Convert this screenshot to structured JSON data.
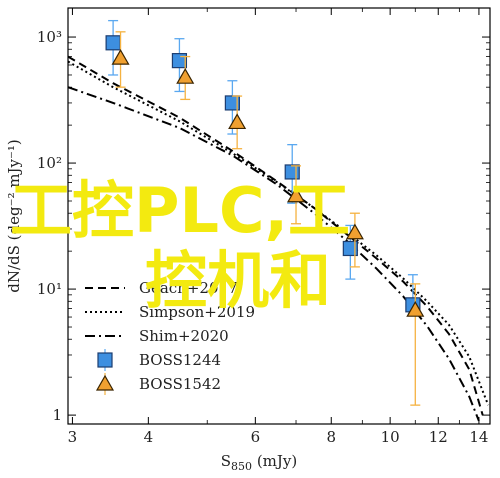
{
  "chart_data": {
    "type": "scatter",
    "xlabel": "S850 (mJy)",
    "xlabel_main": "S",
    "xlabel_sub": "850",
    "xlabel_unit": " (mJy)",
    "ylabel": "dN/dS (deg⁻² mJy⁻¹)",
    "xscale": "log",
    "yscale": "log",
    "xlim": [
      2.95,
      14.6
    ],
    "ylim": [
      0.85,
      1700
    ],
    "x_ticks": [
      3,
      4,
      6,
      8,
      10,
      12,
      14
    ],
    "x_tick_labels": [
      "3",
      "4",
      "6",
      "8",
      "10",
      "12",
      "14"
    ],
    "y_ticks": [
      1,
      10,
      100,
      1000
    ],
    "y_tick_labels": [
      "1",
      "10¹",
      "10²",
      "10³"
    ],
    "lines": [
      {
        "name": "Geach+2017",
        "style": "dashed",
        "x": [
          2.95,
          3.5,
          4.5,
          5.5,
          6.5,
          7.5,
          8.5,
          9.5,
          10.5,
          11.5,
          12.5,
          13.5,
          14.2
        ],
        "y": [
          700,
          430,
          230,
          125,
          72,
          44,
          27,
          17.5,
          11.5,
          7.3,
          4.4,
          2.3,
          1.0
        ]
      },
      {
        "name": "Simpson+2019",
        "style": "dotted",
        "x": [
          2.95,
          3.5,
          4.5,
          5.5,
          6.5,
          7.5,
          8.5,
          9.5,
          10.5,
          11.5,
          12.5,
          13.5,
          14.5
        ],
        "y": [
          640,
          400,
          215,
          120,
          71,
          44,
          28,
          18.5,
          12.2,
          8.0,
          5.2,
          2.9,
          1.2
        ]
      },
      {
        "name": "Shim+2020",
        "style": "dashdot",
        "x": [
          2.95,
          3.5,
          4.5,
          5.5,
          6.5,
          7.5,
          8.5,
          9.5,
          10.5,
          11.5,
          12.5,
          13.5,
          14.0
        ],
        "y": [
          400,
          300,
          190,
          115,
          68,
          40,
          24,
          14.5,
          8.8,
          5.1,
          2.8,
          1.4,
          0.9
        ]
      }
    ],
    "series": [
      {
        "name": "BOSS1244",
        "marker": "square",
        "color": "#3d8fe0",
        "errcolor": "#5aa8f0",
        "x": [
          3.5,
          4.5,
          5.5,
          6.9,
          8.6,
          10.9
        ],
        "y": [
          900,
          650,
          300,
          85,
          21,
          7.5
        ],
        "yerr_low": [
          500,
          370,
          170,
          48,
          12,
          6.4
        ],
        "yerr_high": [
          1350,
          970,
          450,
          140,
          32,
          13
        ]
      },
      {
        "name": "BOSS1542",
        "marker": "triangle",
        "color": "#f0a030",
        "errcolor": "#f5b240",
        "x": [
          3.6,
          4.6,
          5.6,
          7.0,
          8.75,
          11.0
        ],
        "y": [
          680,
          480,
          210,
          55,
          28,
          6.8
        ],
        "yerr_low": [
          400,
          320,
          130,
          33,
          15,
          1.2
        ],
        "yerr_high": [
          1100,
          700,
          340,
          95,
          40,
          11
        ]
      }
    ],
    "legend": {
      "position": "bottom-left",
      "entries": [
        {
          "label": "Geach+2017",
          "kind": "line",
          "style": "dashed"
        },
        {
          "label": "Simpson+2019",
          "kind": "line",
          "style": "dotted"
        },
        {
          "label": "Shim+2020",
          "kind": "line",
          "style": "dashdot"
        },
        {
          "label": "BOSS1244",
          "kind": "marker",
          "marker": "square",
          "color": "#3d8fe0"
        },
        {
          "label": "BOSS1542",
          "kind": "marker",
          "marker": "triangle",
          "color": "#f0a030"
        }
      ]
    },
    "grid": false
  },
  "watermark": {
    "line1": "工控PLC,工",
    "line2": "控机和",
    "color": "#f3ea10"
  }
}
